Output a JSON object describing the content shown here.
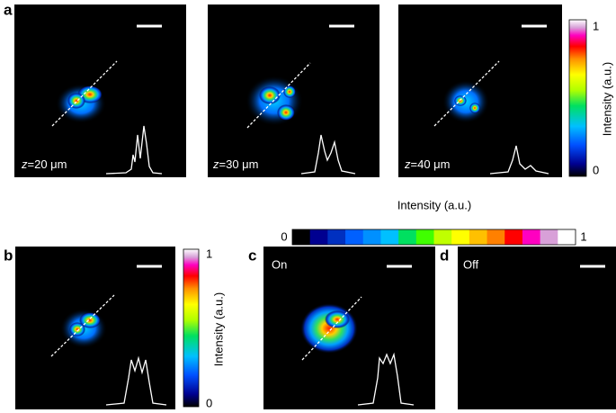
{
  "panels": [
    {
      "label": "a",
      "images": [
        {
          "caption_var": "z",
          "caption": "=20 μm"
        },
        {
          "caption_var": "z",
          "caption": "=30 μm"
        },
        {
          "caption_var": "z",
          "caption": "=40 μm"
        }
      ]
    },
    {
      "label": "b"
    },
    {
      "label": "c",
      "tag": "On"
    },
    {
      "label": "d",
      "tag": "Off"
    }
  ],
  "colorbars": [
    {
      "title": "Intensity (a.u.)",
      "min": 0,
      "max": 1
    },
    {
      "title": "Intensity (a.u.)",
      "min": 0,
      "max": 1
    },
    {
      "title": "Intensity (a.u.)",
      "min": 0,
      "max": 1
    }
  ]
}
